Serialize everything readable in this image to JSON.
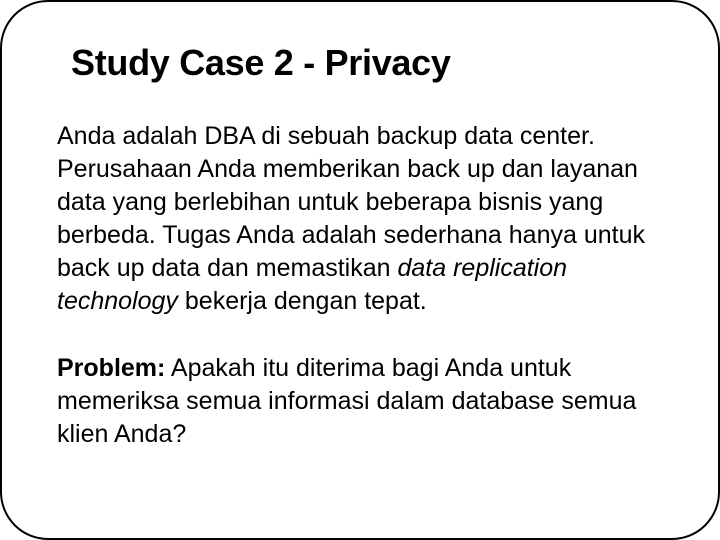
{
  "title": {
    "text": "Study Case 2 - Privacy",
    "fontsize": 36,
    "fontweight": 700,
    "color": "#000000"
  },
  "paragraph": {
    "fontsize": 25,
    "color": "#000000",
    "segments": {
      "p1a": "Anda adalah DBA di sebuah backup data center. Perusahaan Anda memberikan back up dan layanan data yang berlebihan untuk beberapa bisnis yang berbeda. Tugas Anda adalah sederhana hanya untuk back up data dan memastikan ",
      "p1_italic": "data replication technology",
      "p1b": " bekerja dengan tepat."
    }
  },
  "problem": {
    "fontsize": 25,
    "color": "#000000",
    "label": "Problem:",
    "text": " Apakah itu diterima bagi Anda untuk memeriksa semua informasi dalam database semua klien Anda?"
  },
  "frame": {
    "background_color": "#ffffff",
    "border_color": "#000000",
    "border_width": 2,
    "border_radius": 48
  }
}
